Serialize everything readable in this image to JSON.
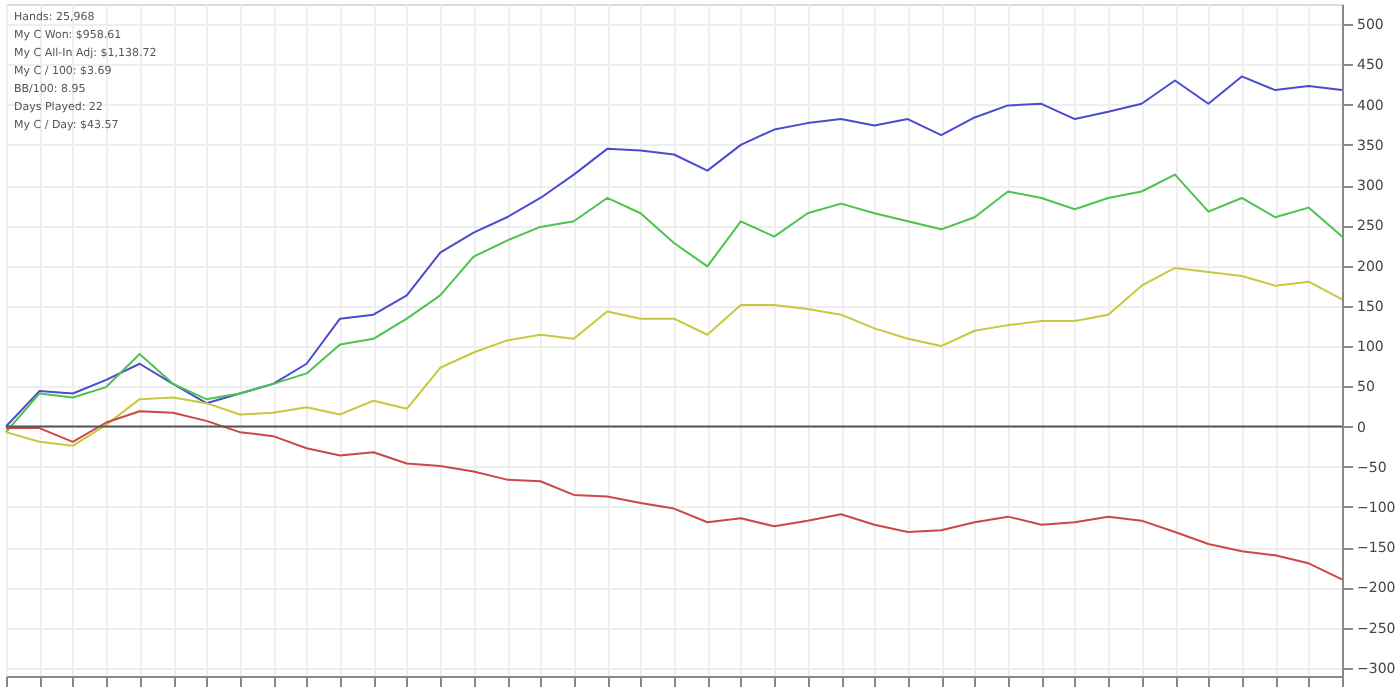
{
  "chart_data": {
    "type": "line",
    "categories": [
      null,
      null,
      null,
      null,
      null,
      null,
      null,
      null,
      null,
      null,
      null,
      null,
      null,
      null,
      null,
      null,
      null,
      null,
      null,
      null,
      null,
      null,
      null,
      null,
      null,
      null,
      null,
      null,
      null,
      null,
      null,
      null,
      null,
      null,
      null,
      null,
      null,
      null,
      null,
      null,
      null
    ],
    "series": [
      {
        "color": "#4b4bcf",
        "values": [
          0,
          44,
          41,
          58,
          78,
          53,
          29,
          41,
          53,
          78,
          134,
          139,
          163,
          216,
          241,
          260,
          284,
          313,
          345,
          343,
          338,
          318,
          350,
          369,
          377,
          382,
          374,
          382,
          362,
          384,
          399,
          401,
          382,
          391,
          401,
          430,
          401,
          435,
          418,
          423,
          418
        ]
      },
      {
        "color": "#4dc34d",
        "values": [
          -7,
          41,
          36,
          49,
          90,
          53,
          34,
          41,
          53,
          66,
          102,
          109,
          134,
          163,
          211,
          231,
          248,
          255,
          284,
          265,
          228,
          199,
          255,
          236,
          265,
          277,
          265,
          255,
          245,
          260,
          292,
          284,
          270,
          284,
          292,
          313,
          267,
          284,
          260,
          272,
          236
        ]
      },
      {
        "color": "#c8c83c",
        "values": [
          -7,
          -19,
          -24,
          2,
          34,
          36,
          29,
          15,
          17,
          24,
          15,
          32,
          22,
          73,
          92,
          107,
          114,
          109,
          143,
          134,
          134,
          114,
          151,
          151,
          146,
          139,
          122,
          109,
          100,
          119,
          126,
          131,
          131,
          139,
          175,
          197,
          192,
          187,
          175,
          180,
          158
        ]
      },
      {
        "color": "#cc4848",
        "values": [
          -2,
          -2,
          -19,
          5,
          19,
          17,
          7,
          -7,
          -12,
          -27,
          -36,
          -32,
          -46,
          -49,
          -56,
          -66,
          -68,
          -85,
          -87,
          -95,
          -102,
          -119,
          -114,
          -124,
          -117,
          -109,
          -122,
          -131,
          -129,
          -119,
          -112,
          -122,
          -119,
          -112,
          -117,
          -131,
          -146,
          -155,
          -160,
          -170,
          -190
        ]
      }
    ],
    "ylim": [
      -310,
      525
    ],
    "yticks": [
      -300,
      -250,
      -200,
      -150,
      -100,
      -50,
      0,
      50,
      100,
      150,
      200,
      250,
      300,
      350,
      400,
      450,
      500
    ],
    "tick_labels": "y",
    "grid": true,
    "legend": false,
    "marker": "none",
    "line_style": "solid",
    "ref_lines": [
      {
        "axis": "y",
        "value": 0,
        "color": "#555555"
      }
    ],
    "annotations": [
      "Hands: 25,968",
      "My C Won: $958.61",
      "My C All-In Adj: $1,138.72",
      "My C / 100: $3.69",
      "BB/100: 8.95",
      "Days Played: 22",
      "My C / Day: $43.57"
    ]
  }
}
